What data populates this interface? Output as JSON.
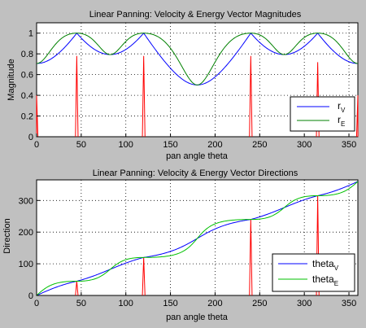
{
  "chart_data": [
    {
      "type": "line",
      "title": "Linear Panning: Velocity & Energy Vector Magnitudes",
      "xlabel": "pan angle theta",
      "ylabel": "Magnitude",
      "xlim": [
        0,
        360
      ],
      "ylim": [
        0,
        1.1
      ],
      "xticks": [
        "0",
        "50",
        "100",
        "150",
        "200",
        "250",
        "300",
        "350"
      ],
      "yticks": [
        "0",
        "0.2",
        "0.4",
        "0.6",
        "0.8",
        "1"
      ],
      "grid": true,
      "legend_position": "right",
      "speaker_angles": [
        45,
        120,
        240,
        315
      ],
      "series": [
        {
          "name": "r",
          "subscript": "V",
          "color": "#0000ff",
          "values": "velocity magnitude of linear pan between speakers at 45, 120, 240, 315 deg"
        },
        {
          "name": "r",
          "subscript": "E",
          "color": "#008000",
          "values": "energy magnitude of linear pan between speakers at 45, 120, 240, 315 deg"
        }
      ],
      "spikes": {
        "color": "#ff0000",
        "x": [
          0,
          45,
          120,
          240,
          315,
          360
        ],
        "y": [
          0.4,
          0.78,
          0.78,
          0.78,
          0.72,
          0.4
        ]
      }
    },
    {
      "type": "line",
      "title": "Linear Panning: Velocity & Energy Vector Directions",
      "xlabel": "pan angle theta",
      "ylabel": "Direction",
      "xlim": [
        0,
        360
      ],
      "ylim": [
        0,
        365
      ],
      "xticks": [
        "0",
        "50",
        "100",
        "150",
        "200",
        "250",
        "300",
        "350"
      ],
      "yticks": [
        "0",
        "100",
        "200",
        "300"
      ],
      "grid": true,
      "legend_position": "bottom-right",
      "series": [
        {
          "name": "theta",
          "subscript": "V",
          "color": "#0000ff"
        },
        {
          "name": "theta",
          "subscript": "E",
          "color": "#00c000"
        }
      ],
      "spikes": {
        "color": "#ff0000",
        "x": [
          45,
          120,
          240,
          315
        ],
        "y": [
          45,
          120,
          240,
          315
        ]
      }
    }
  ]
}
